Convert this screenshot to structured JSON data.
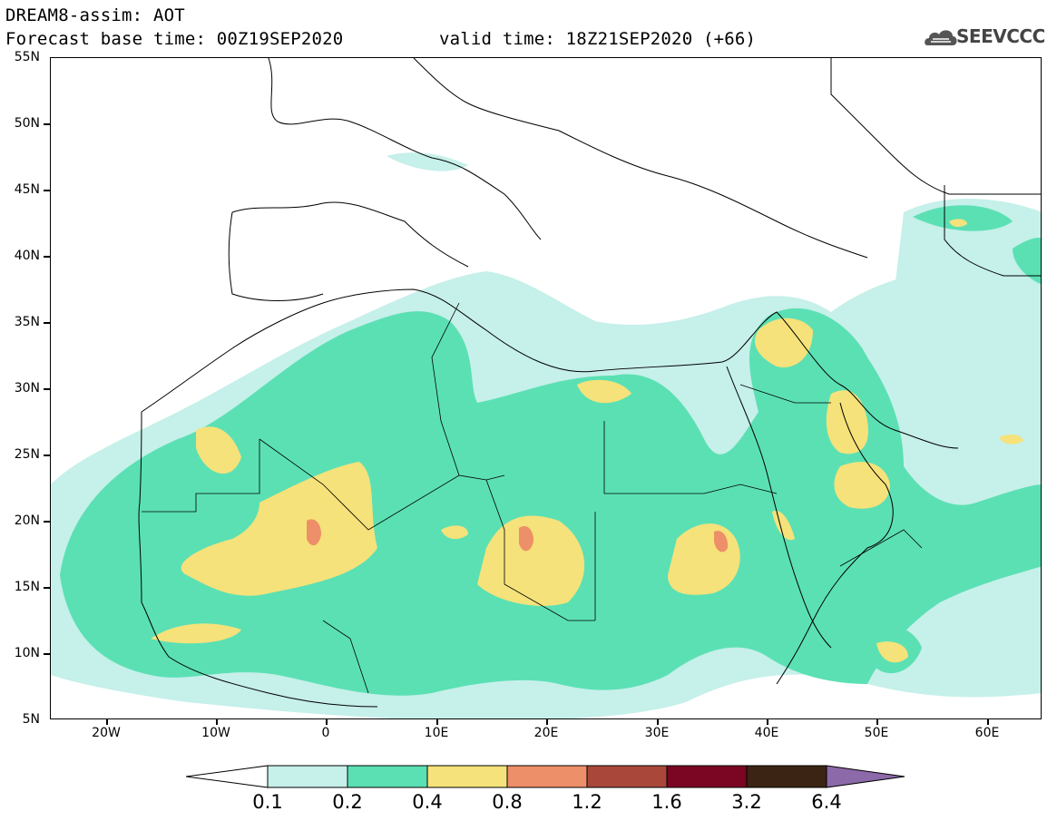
{
  "header": {
    "title": "DREAM8-assim: AOT",
    "base_time": "Forecast base time: 00Z19SEP2020",
    "valid_time": "valid time: 18Z21SEP2020 (+66)"
  },
  "logo": {
    "text": "SEEVCCC",
    "icon": "cloud-icon"
  },
  "map": {
    "lat_labels": [
      "55N",
      "50N",
      "45N",
      "40N",
      "35N",
      "30N",
      "25N",
      "20N",
      "15N",
      "10N",
      "5N"
    ],
    "lon_labels": [
      "20W",
      "10W",
      "0",
      "10E",
      "20E",
      "30E",
      "40E",
      "50E",
      "60E"
    ],
    "extent": {
      "lon": [
        -25,
        65
      ],
      "lat": [
        5,
        55
      ]
    }
  },
  "colorbar": {
    "labels": [
      "0.1",
      "0.2",
      "0.4",
      "0.8",
      "1.2",
      "1.6",
      "3.2",
      "6.4"
    ],
    "colors": [
      "#ffffff",
      "#c6f0ea",
      "#5be0b4",
      "#f5e27a",
      "#ed8f68",
      "#a9483a",
      "#7a0624",
      "#3b2413",
      "#8c69a8"
    ]
  }
}
